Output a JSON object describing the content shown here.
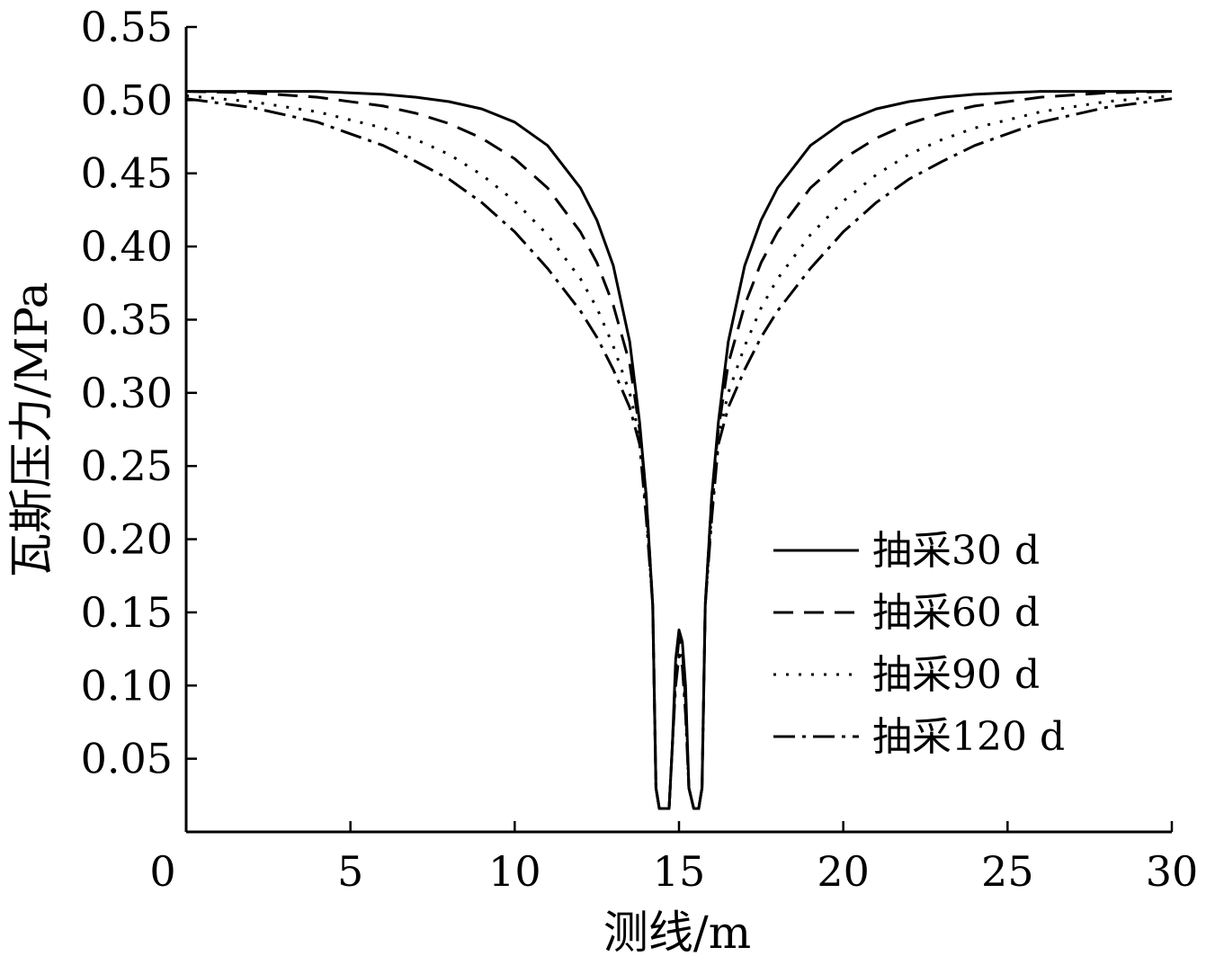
{
  "chart_data": {
    "type": "line",
    "title": "",
    "xlabel": "测线/m",
    "ylabel": "瓦斯压力/MPa",
    "xlim": [
      0,
      30
    ],
    "ylim": [
      0,
      0.55
    ],
    "xticks": [
      "0",
      "5",
      "10",
      "15",
      "20",
      "25",
      "30"
    ],
    "yticks": [
      "0.05",
      "0.10",
      "0.15",
      "0.20",
      "0.25",
      "0.30",
      "0.35",
      "0.40",
      "0.45",
      "0.50",
      "0.55"
    ],
    "legend_position": "lower-right",
    "grid": false,
    "series": [
      {
        "name": "抽采30 d",
        "dash": "",
        "x": [
          0,
          2,
          4,
          6,
          7,
          8,
          9,
          10,
          11,
          12,
          12.5,
          13,
          13.5,
          13.8,
          14.0,
          14.2,
          14.3,
          14.4,
          14.55,
          14.7,
          14.8,
          14.9,
          15.0,
          15.1,
          15.2,
          15.3,
          15.45,
          15.6,
          15.7,
          15.8,
          16.0,
          16.2,
          16.5,
          17,
          17.5,
          18,
          19,
          20,
          21,
          22,
          23,
          24,
          26,
          28,
          30
        ],
        "y": [
          0.506,
          0.506,
          0.506,
          0.504,
          0.502,
          0.499,
          0.494,
          0.485,
          0.469,
          0.44,
          0.418,
          0.387,
          0.335,
          0.28,
          0.23,
          0.155,
          0.03,
          0.016,
          0.016,
          0.016,
          0.06,
          0.118,
          0.138,
          0.13,
          0.1,
          0.03,
          0.016,
          0.016,
          0.03,
          0.155,
          0.23,
          0.28,
          0.335,
          0.387,
          0.418,
          0.44,
          0.469,
          0.485,
          0.494,
          0.499,
          0.502,
          0.504,
          0.506,
          0.506,
          0.506
        ]
      },
      {
        "name": "抽采60 d",
        "dash": "22 12",
        "x": [
          0,
          2,
          4,
          6,
          7,
          8,
          9,
          10,
          11,
          12,
          12.5,
          13,
          13.5,
          13.8,
          14.0,
          14.2,
          14.3,
          14.4,
          14.55,
          14.7,
          14.8,
          14.9,
          15.0,
          15.1,
          15.2,
          15.3,
          15.45,
          15.6,
          15.7,
          15.8,
          16.0,
          16.2,
          16.5,
          17,
          17.5,
          18,
          19,
          20,
          21,
          22,
          23,
          24,
          26,
          28,
          30
        ],
        "y": [
          0.506,
          0.505,
          0.502,
          0.496,
          0.491,
          0.484,
          0.474,
          0.46,
          0.44,
          0.41,
          0.389,
          0.36,
          0.32,
          0.275,
          0.23,
          0.155,
          0.03,
          0.016,
          0.016,
          0.016,
          0.06,
          0.11,
          0.132,
          0.125,
          0.09,
          0.03,
          0.016,
          0.016,
          0.03,
          0.155,
          0.23,
          0.275,
          0.32,
          0.36,
          0.389,
          0.41,
          0.44,
          0.46,
          0.474,
          0.484,
          0.491,
          0.496,
          0.502,
          0.505,
          0.506
        ]
      },
      {
        "name": "抽采90 d",
        "dash": "3 11",
        "x": [
          0,
          2,
          4,
          6,
          7,
          8,
          9,
          10,
          11,
          12,
          12.5,
          13,
          13.5,
          13.8,
          14.0,
          14.2,
          14.3,
          14.4,
          14.55,
          14.7,
          14.8,
          14.9,
          15.0,
          15.1,
          15.2,
          15.3,
          15.45,
          15.6,
          15.7,
          15.8,
          16.0,
          16.2,
          16.5,
          17,
          17.5,
          18,
          19,
          20,
          21,
          22,
          23,
          24,
          26,
          28,
          30
        ],
        "y": [
          0.503,
          0.499,
          0.492,
          0.481,
          0.473,
          0.463,
          0.449,
          0.431,
          0.408,
          0.378,
          0.358,
          0.332,
          0.3,
          0.27,
          0.22,
          0.155,
          0.03,
          0.016,
          0.016,
          0.016,
          0.06,
          0.105,
          0.125,
          0.118,
          0.085,
          0.03,
          0.016,
          0.016,
          0.03,
          0.155,
          0.22,
          0.27,
          0.3,
          0.332,
          0.358,
          0.378,
          0.408,
          0.431,
          0.449,
          0.463,
          0.473,
          0.481,
          0.492,
          0.499,
          0.503
        ]
      },
      {
        "name": "抽采120 d",
        "dash": "24 8 4 8",
        "x": [
          0,
          2,
          4,
          6,
          7,
          8,
          9,
          10,
          11,
          12,
          12.5,
          13,
          13.5,
          13.8,
          14.0,
          14.2,
          14.3,
          14.4,
          14.55,
          14.7,
          14.8,
          14.9,
          15.0,
          15.1,
          15.2,
          15.3,
          15.45,
          15.6,
          15.7,
          15.8,
          16.0,
          16.2,
          16.5,
          17,
          17.5,
          18,
          19,
          20,
          21,
          22,
          23,
          24,
          26,
          28,
          30
        ],
        "y": [
          0.501,
          0.495,
          0.485,
          0.469,
          0.458,
          0.446,
          0.43,
          0.41,
          0.385,
          0.356,
          0.338,
          0.316,
          0.29,
          0.265,
          0.215,
          0.155,
          0.03,
          0.016,
          0.016,
          0.016,
          0.06,
          0.1,
          0.12,
          0.113,
          0.08,
          0.03,
          0.016,
          0.016,
          0.03,
          0.155,
          0.215,
          0.265,
          0.29,
          0.316,
          0.338,
          0.356,
          0.385,
          0.41,
          0.43,
          0.446,
          0.458,
          0.469,
          0.485,
          0.495,
          0.501
        ]
      }
    ]
  }
}
